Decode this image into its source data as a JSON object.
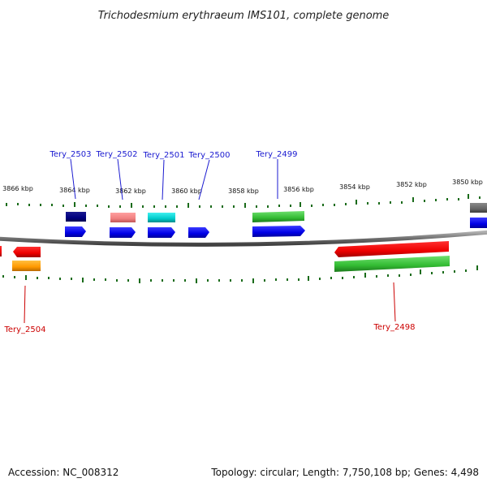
{
  "title": "Trichodesmium erythraeum IMS101, complete genome",
  "footer": {
    "accession": "Accession: NC_008312",
    "stats": "Topology: circular; Length: 7,750,108 bp; Genes: 4,498"
  },
  "ticks": [
    {
      "label": "3866 kbp"
    },
    {
      "label": "3864 kbp"
    },
    {
      "label": "3862 kbp"
    },
    {
      "label": "3860 kbp"
    },
    {
      "label": "3858 kbp"
    },
    {
      "label": "3856 kbp"
    },
    {
      "label": "3854 kbp"
    },
    {
      "label": "3852 kbp"
    },
    {
      "label": "3850 kbp"
    }
  ],
  "gene_labels": {
    "forward": [
      "Tery_2503",
      "Tery_2502",
      "Tery_2501",
      "Tery_2500",
      "Tery_2499"
    ],
    "reverse": [
      "Tery_2504",
      "Tery_2498"
    ]
  },
  "colors": {
    "backbone": "#777777",
    "cds_forward": "#0000ee",
    "cds_reverse": "#ee0000",
    "tick": "#1a6b1a",
    "label_forward": "#1a1ad0",
    "label_reverse": "#cc0000"
  }
}
